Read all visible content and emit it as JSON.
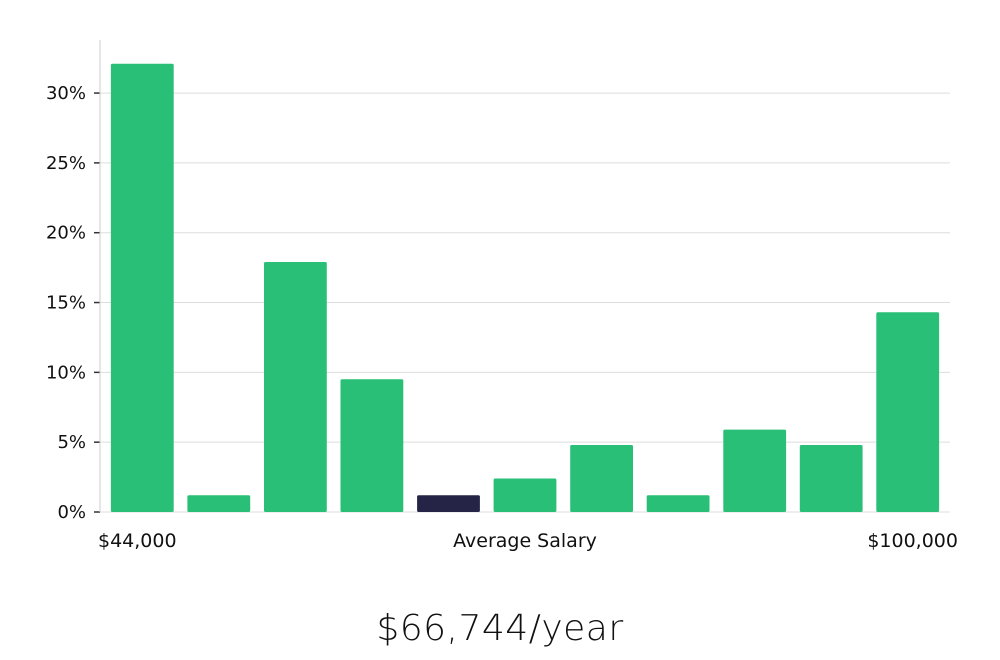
{
  "chart_data": {
    "type": "bar",
    "title": "",
    "xlabel": "",
    "ylabel": "",
    "x_axis_labels": {
      "left": "$44,000",
      "center": "Average Salary",
      "right": "$100,000"
    },
    "values": [
      32.1,
      1.2,
      17.9,
      9.5,
      1.2,
      2.4,
      4.8,
      1.2,
      5.9,
      4.8,
      14.3
    ],
    "highlight_index": 4,
    "ylim": [
      0,
      33.8
    ],
    "yticks": [
      0,
      5,
      10,
      15,
      20,
      25,
      30
    ],
    "ytick_suffix": "%",
    "grid": true,
    "colors": {
      "bar": "#2abf77",
      "highlight": "#252446",
      "grid": "#dddddd",
      "axis": "#cccccc"
    }
  },
  "summary": {
    "average_salary": "$66,744/year"
  }
}
